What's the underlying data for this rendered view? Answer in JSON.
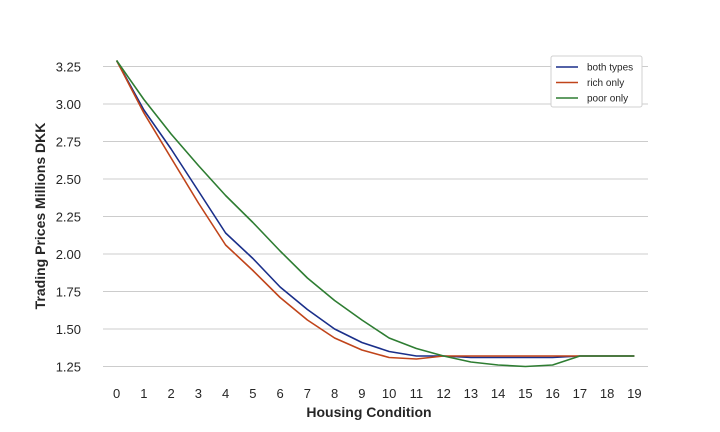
{
  "chart_data": {
    "type": "line",
    "xlabel": "Housing Condition",
    "ylabel": "Trading Prices Millions DKK",
    "x": [
      0,
      1,
      2,
      3,
      4,
      5,
      6,
      7,
      8,
      9,
      10,
      11,
      12,
      13,
      14,
      15,
      16,
      17,
      18,
      19
    ],
    "xticks": [
      "0",
      "1",
      "2",
      "3",
      "4",
      "5",
      "6",
      "7",
      "8",
      "9",
      "10",
      "11",
      "12",
      "13",
      "14",
      "15",
      "16",
      "17",
      "18",
      "19"
    ],
    "yticks": [
      "1.25",
      "1.50",
      "1.75",
      "2.00",
      "2.25",
      "2.50",
      "2.75",
      "3.00",
      "3.25"
    ],
    "yticks_values": [
      1.25,
      1.5,
      1.75,
      2.0,
      2.25,
      2.5,
      2.75,
      3.0,
      3.25
    ],
    "xlim": [
      -0.5,
      19.5
    ],
    "ylim": [
      1.2,
      3.3
    ],
    "grid": "horizontal",
    "legend_position": "top-right",
    "series": [
      {
        "name": "both types",
        "color": "#1a2f8a",
        "values": [
          3.29,
          2.96,
          2.7,
          2.42,
          2.14,
          1.97,
          1.78,
          1.63,
          1.5,
          1.41,
          1.35,
          1.32,
          1.32,
          1.31,
          1.31,
          1.31,
          1.31,
          1.32,
          1.32,
          1.32
        ]
      },
      {
        "name": "rich only",
        "color": "#c0441a",
        "values": [
          3.29,
          2.94,
          2.64,
          2.34,
          2.06,
          1.89,
          1.71,
          1.56,
          1.44,
          1.36,
          1.31,
          1.3,
          1.32,
          1.32,
          1.32,
          1.32,
          1.32,
          1.32,
          1.32,
          1.32
        ]
      },
      {
        "name": "poor only",
        "color": "#2e7d32",
        "values": [
          3.29,
          3.03,
          2.8,
          2.59,
          2.39,
          2.21,
          2.02,
          1.84,
          1.69,
          1.56,
          1.44,
          1.37,
          1.32,
          1.28,
          1.26,
          1.25,
          1.26,
          1.32,
          1.32,
          1.32
        ]
      }
    ]
  }
}
